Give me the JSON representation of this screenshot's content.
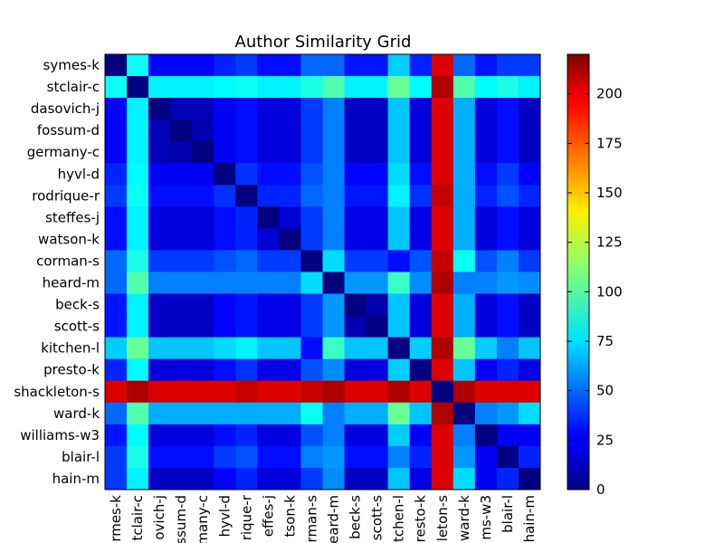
{
  "chart_data": {
    "type": "heatmap",
    "title": "Author Similarity Grid",
    "labels": [
      "symes-k",
      "stclair-c",
      "dasovich-j",
      "fossum-d",
      "germany-c",
      "hyvl-d",
      "rodrique-r",
      "steffes-j",
      "watson-k",
      "corman-s",
      "heard-m",
      "beck-s",
      "scott-s",
      "kitchen-l",
      "presto-k",
      "shackleton-s",
      "ward-k",
      "williams-w3",
      "blair-l",
      "hain-m"
    ],
    "x_tick_labels": [
      "rmes-k",
      "tclair-c",
      "ovich-j",
      "ssum-d",
      "many-c",
      "hyvl-d",
      "rique-r",
      "effes-j",
      "tson-k",
      "rman-s",
      "eard-m",
      "beck-s",
      "scott-s",
      "tchen-l",
      "resto-k",
      "leton-s",
      "ward-k",
      "ms-w3",
      "blair-l",
      "hain-m"
    ],
    "values": [
      [
        0,
        85,
        28,
        28,
        28,
        35,
        40,
        30,
        30,
        50,
        50,
        32,
        32,
        72,
        35,
        200,
        50,
        32,
        40,
        40
      ],
      [
        85,
        0,
        80,
        80,
        80,
        82,
        85,
        80,
        80,
        88,
        100,
        80,
        80,
        105,
        82,
        210,
        100,
        82,
        88,
        80
      ],
      [
        28,
        80,
        0,
        12,
        12,
        25,
        30,
        20,
        20,
        40,
        55,
        15,
        15,
        70,
        20,
        200,
        65,
        20,
        30,
        15
      ],
      [
        28,
        80,
        12,
        0,
        10,
        25,
        30,
        20,
        20,
        40,
        55,
        15,
        15,
        70,
        20,
        200,
        65,
        20,
        30,
        15
      ],
      [
        28,
        80,
        12,
        10,
        0,
        25,
        30,
        20,
        20,
        40,
        55,
        15,
        15,
        70,
        20,
        200,
        65,
        20,
        30,
        15
      ],
      [
        35,
        82,
        25,
        25,
        25,
        0,
        38,
        30,
        30,
        45,
        55,
        28,
        28,
        75,
        30,
        200,
        65,
        30,
        40,
        28
      ],
      [
        40,
        85,
        30,
        30,
        30,
        38,
        0,
        35,
        35,
        50,
        55,
        32,
        32,
        80,
        38,
        205,
        65,
        35,
        45,
        35
      ],
      [
        30,
        80,
        20,
        20,
        20,
        30,
        35,
        0,
        18,
        40,
        55,
        22,
        22,
        70,
        22,
        200,
        65,
        20,
        30,
        20
      ],
      [
        30,
        80,
        20,
        20,
        20,
        30,
        35,
        18,
        0,
        40,
        55,
        22,
        22,
        70,
        22,
        200,
        65,
        20,
        30,
        20
      ],
      [
        50,
        88,
        40,
        40,
        40,
        45,
        50,
        40,
        40,
        0,
        75,
        40,
        40,
        30,
        45,
        205,
        85,
        45,
        55,
        40
      ],
      [
        50,
        100,
        55,
        55,
        55,
        55,
        55,
        55,
        55,
        75,
        0,
        60,
        60,
        95,
        58,
        210,
        55,
        55,
        60,
        58
      ],
      [
        32,
        80,
        15,
        15,
        15,
        28,
        32,
        22,
        22,
        40,
        60,
        0,
        10,
        70,
        20,
        200,
        65,
        20,
        30,
        15
      ],
      [
        32,
        80,
        15,
        15,
        15,
        28,
        32,
        22,
        22,
        40,
        60,
        10,
        0,
        70,
        20,
        200,
        65,
        20,
        30,
        15
      ],
      [
        72,
        105,
        70,
        70,
        70,
        75,
        80,
        70,
        70,
        30,
        95,
        70,
        70,
        0,
        72,
        210,
        105,
        72,
        55,
        70
      ],
      [
        35,
        82,
        20,
        20,
        20,
        30,
        38,
        22,
        22,
        45,
        58,
        20,
        20,
        72,
        0,
        200,
        70,
        25,
        35,
        22
      ],
      [
        200,
        210,
        200,
        200,
        200,
        200,
        205,
        200,
        200,
        205,
        210,
        200,
        200,
        210,
        200,
        0,
        210,
        200,
        200,
        200
      ],
      [
        50,
        100,
        65,
        65,
        65,
        65,
        65,
        65,
        65,
        85,
        55,
        65,
        65,
        105,
        70,
        210,
        0,
        55,
        60,
        75
      ],
      [
        32,
        82,
        20,
        20,
        20,
        30,
        35,
        20,
        20,
        45,
        55,
        20,
        20,
        72,
        25,
        200,
        55,
        0,
        25,
        25
      ],
      [
        40,
        88,
        30,
        30,
        30,
        40,
        45,
        30,
        30,
        55,
        60,
        30,
        30,
        55,
        35,
        200,
        60,
        25,
        0,
        35
      ],
      [
        40,
        80,
        15,
        15,
        15,
        28,
        35,
        20,
        20,
        40,
        58,
        15,
        15,
        70,
        22,
        200,
        75,
        25,
        35,
        0
      ]
    ],
    "vmin": 0,
    "vmax": 220,
    "colormap": "jet",
    "colorbar_ticks": [
      0,
      25,
      50,
      75,
      100,
      125,
      150,
      175,
      200
    ]
  }
}
